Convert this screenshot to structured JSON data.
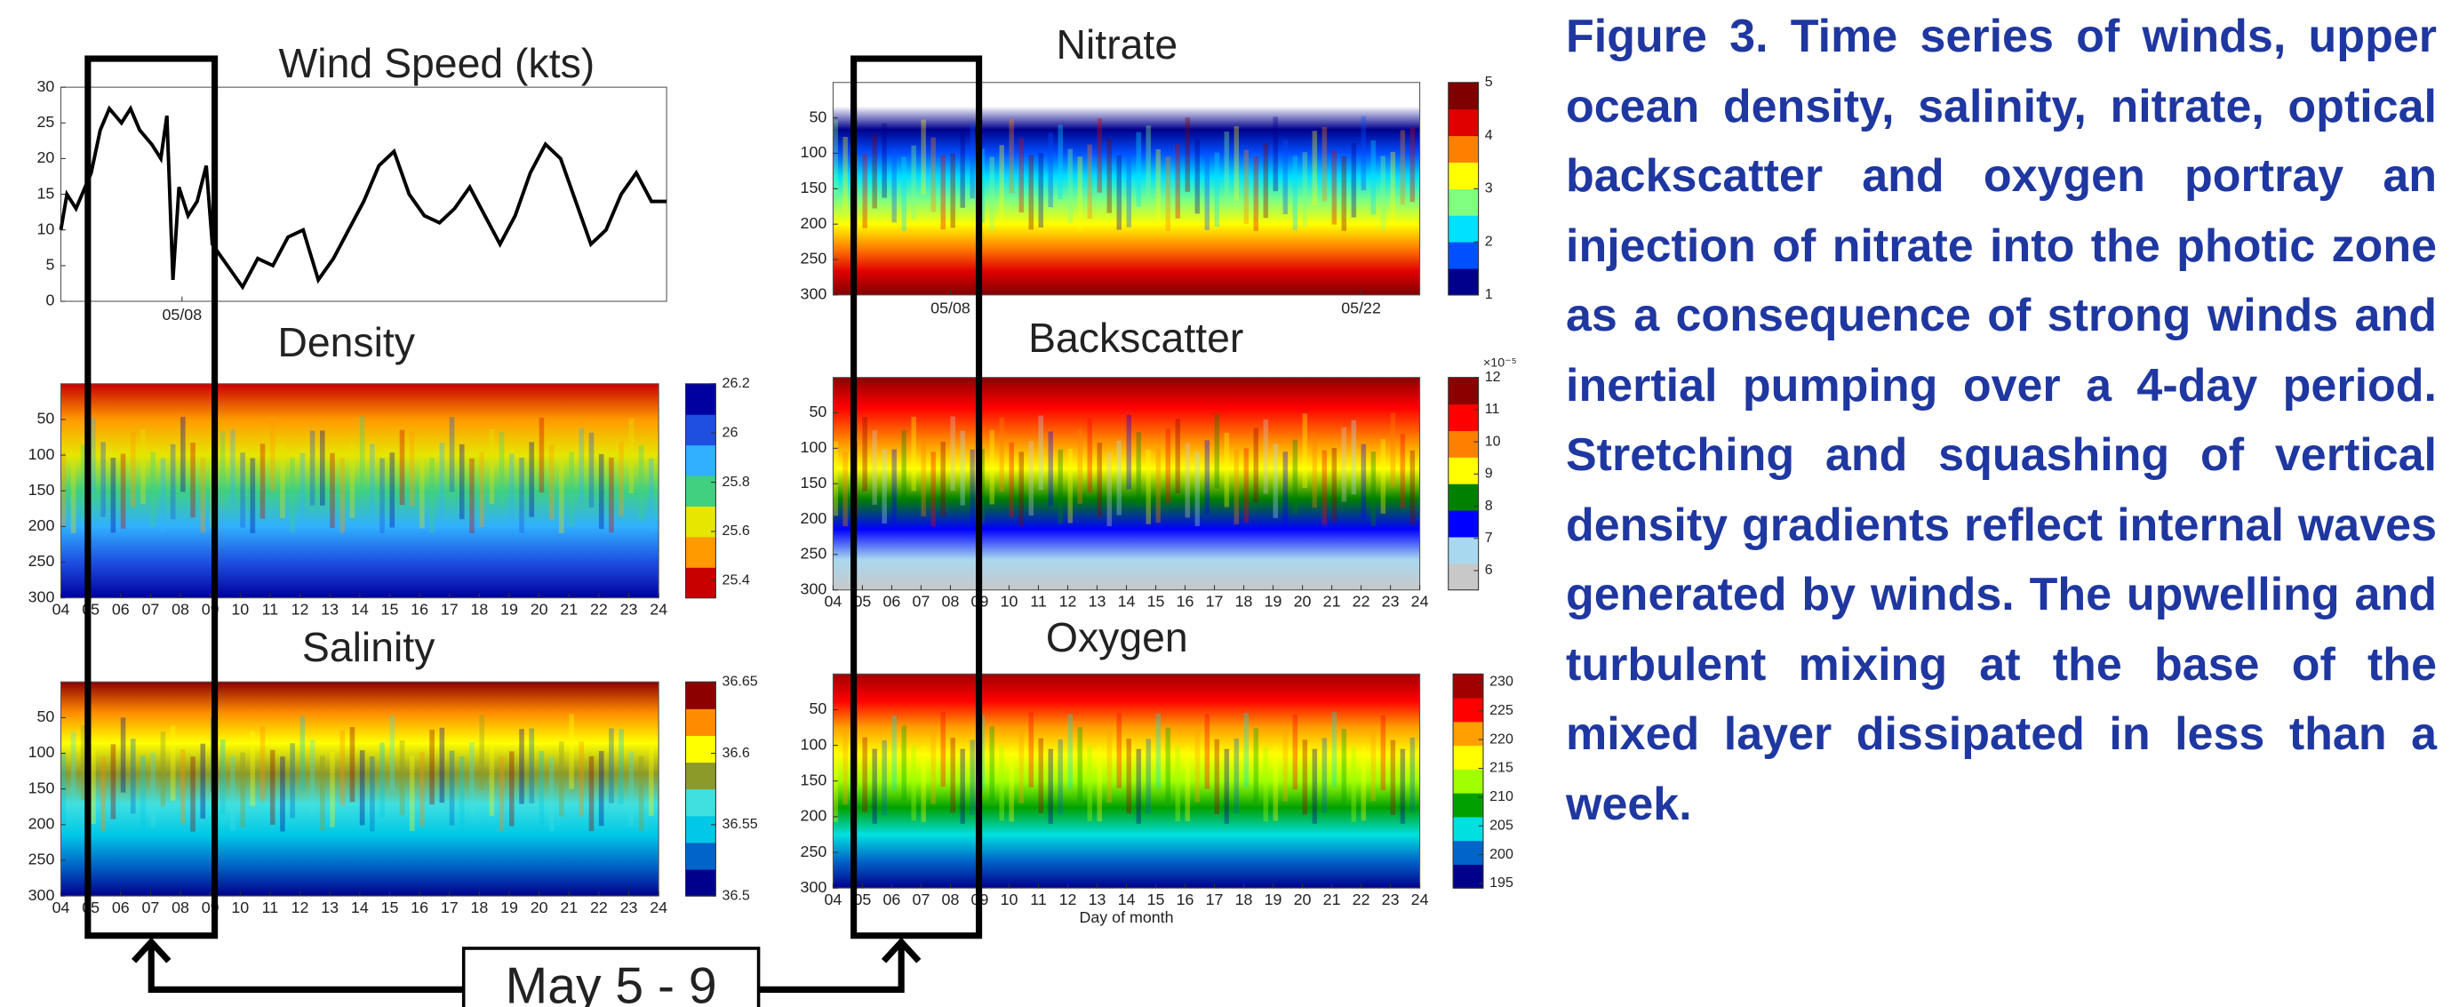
{
  "figure": {
    "annotation": "May 5 - 9",
    "day_ticks": [
      "04",
      "05",
      "06",
      "07",
      "08",
      "09",
      "10",
      "11",
      "12",
      "13",
      "14",
      "15",
      "16",
      "17",
      "18",
      "19",
      "20",
      "21",
      "22",
      "23",
      "24"
    ],
    "panels": [
      {
        "type": "line",
        "title": "Wind Speed (kts)",
        "xlim": [
          4,
          24
        ],
        "ylim": [
          0,
          30
        ],
        "yticks": [
          0,
          5,
          10,
          15,
          20,
          25,
          30
        ],
        "xticks": [
          {
            "value": 8,
            "label": "05/08"
          }
        ],
        "color": "#000000",
        "x": [
          4,
          4.2,
          4.5,
          5,
          5.3,
          5.6,
          6,
          6.3,
          6.6,
          7,
          7.3,
          7.5,
          7.7,
          7.9,
          8.2,
          8.5,
          8.8,
          9,
          9.5,
          10,
          10.5,
          11,
          11.5,
          12,
          12.5,
          13,
          13.5,
          14,
          14.5,
          15,
          15.5,
          16,
          16.5,
          17,
          17.5,
          18,
          18.5,
          19,
          19.5,
          20,
          20.5,
          21,
          21.5,
          22,
          22.5,
          23,
          23.5,
          24
        ],
        "values": [
          10,
          15,
          13,
          18,
          24,
          27,
          25,
          27,
          24,
          22,
          20,
          26,
          3,
          16,
          12,
          14,
          19,
          8,
          5,
          2,
          6,
          5,
          9,
          10,
          3,
          6,
          10,
          14,
          19,
          21,
          15,
          12,
          11,
          13,
          16,
          12,
          8,
          12,
          18,
          22,
          20,
          14,
          8,
          10,
          15,
          18,
          14,
          14
        ]
      },
      {
        "type": "heatmap",
        "title": "Density",
        "xlim": [
          4,
          24
        ],
        "ylim": [
          0,
          300
        ],
        "yticks": [
          50,
          100,
          150,
          200,
          250,
          300
        ],
        "day_ticks": true,
        "colorbar": {
          "clim": [
            25.33,
            26.2
          ],
          "ticks": [
            25.4,
            25.6,
            25.8,
            26,
            26.2
          ],
          "colors": [
            "#c80000",
            "#ff9a00",
            "#e6e600",
            "#40d080",
            "#30b0ff",
            "#1e4fe0",
            "#0000a0"
          ]
        }
      },
      {
        "type": "heatmap",
        "title": "Salinity",
        "xlim": [
          4,
          24
        ],
        "ylim": [
          0,
          300
        ],
        "yticks": [
          50,
          100,
          150,
          200,
          250,
          300
        ],
        "day_ticks": true,
        "colorbar": {
          "clim": [
            36.5,
            36.65
          ],
          "ticks": [
            36.5,
            36.55,
            36.6,
            36.65
          ],
          "colors": [
            "#00008c",
            "#0064c8",
            "#00c8e6",
            "#40e0e0",
            "#8c9a2a",
            "#ffff00",
            "#ff8c00",
            "#8c0000"
          ]
        }
      },
      {
        "type": "heatmap",
        "title": "Nitrate",
        "xlim": [
          4,
          24
        ],
        "ylim": [
          0,
          300
        ],
        "yticks": [
          50,
          100,
          150,
          200,
          250,
          300
        ],
        "xticks": [
          {
            "value": 8,
            "label": "05/08"
          },
          {
            "value": 22,
            "label": "05/22"
          }
        ],
        "colorbar": {
          "clim": [
            1,
            5
          ],
          "ticks": [
            1,
            2,
            3,
            4,
            5
          ],
          "colors": [
            "#00008c",
            "#0050ff",
            "#00e0ff",
            "#80ff80",
            "#ffff00",
            "#ff8000",
            "#e00000",
            "#800000"
          ]
        }
      },
      {
        "type": "heatmap",
        "title": "Backscatter",
        "xlim": [
          4,
          24
        ],
        "ylim": [
          0,
          300
        ],
        "yticks": [
          50,
          100,
          150,
          200,
          250,
          300
        ],
        "day_ticks": true,
        "multiplier": "×10⁻⁵",
        "colorbar": {
          "clim": [
            5.4,
            12
          ],
          "ticks": [
            6,
            7,
            8,
            9,
            10,
            11,
            12
          ],
          "colors": [
            "#c8c8c8",
            "#a8d8f0",
            "#0000ff",
            "#008000",
            "#ffff00",
            "#ff8000",
            "#ff0000",
            "#8c0000"
          ]
        }
      },
      {
        "type": "heatmap",
        "title": "Oxygen",
        "xlim": [
          4,
          24
        ],
        "ylim": [
          0,
          300
        ],
        "yticks": [
          50,
          100,
          150,
          200,
          250,
          300
        ],
        "day_ticks": true,
        "xlabel": "Day of month",
        "colorbar": {
          "clim": [
            194.2,
            231.4
          ],
          "ticks": [
            195,
            200,
            205,
            210,
            215,
            220,
            225,
            230
          ],
          "colors": [
            "#00008c",
            "#0064c8",
            "#00e0e0",
            "#00a000",
            "#a0ff00",
            "#ffff00",
            "#ffa000",
            "#ff0000",
            "#a00000"
          ]
        }
      }
    ]
  },
  "caption": "Figure 3. Time series of winds, upper ocean density, salinity, nitrate, optical backscatter and oxygen portray an injection of nitrate into the photic zone as a consequence of strong winds and inertial pumping over a 4-day period.  Stretching and squashing of vertical density gradients reflect internal waves generated by winds. The upwelling and turbulent mixing at the base of the mixed layer dissipated in less than a week."
}
